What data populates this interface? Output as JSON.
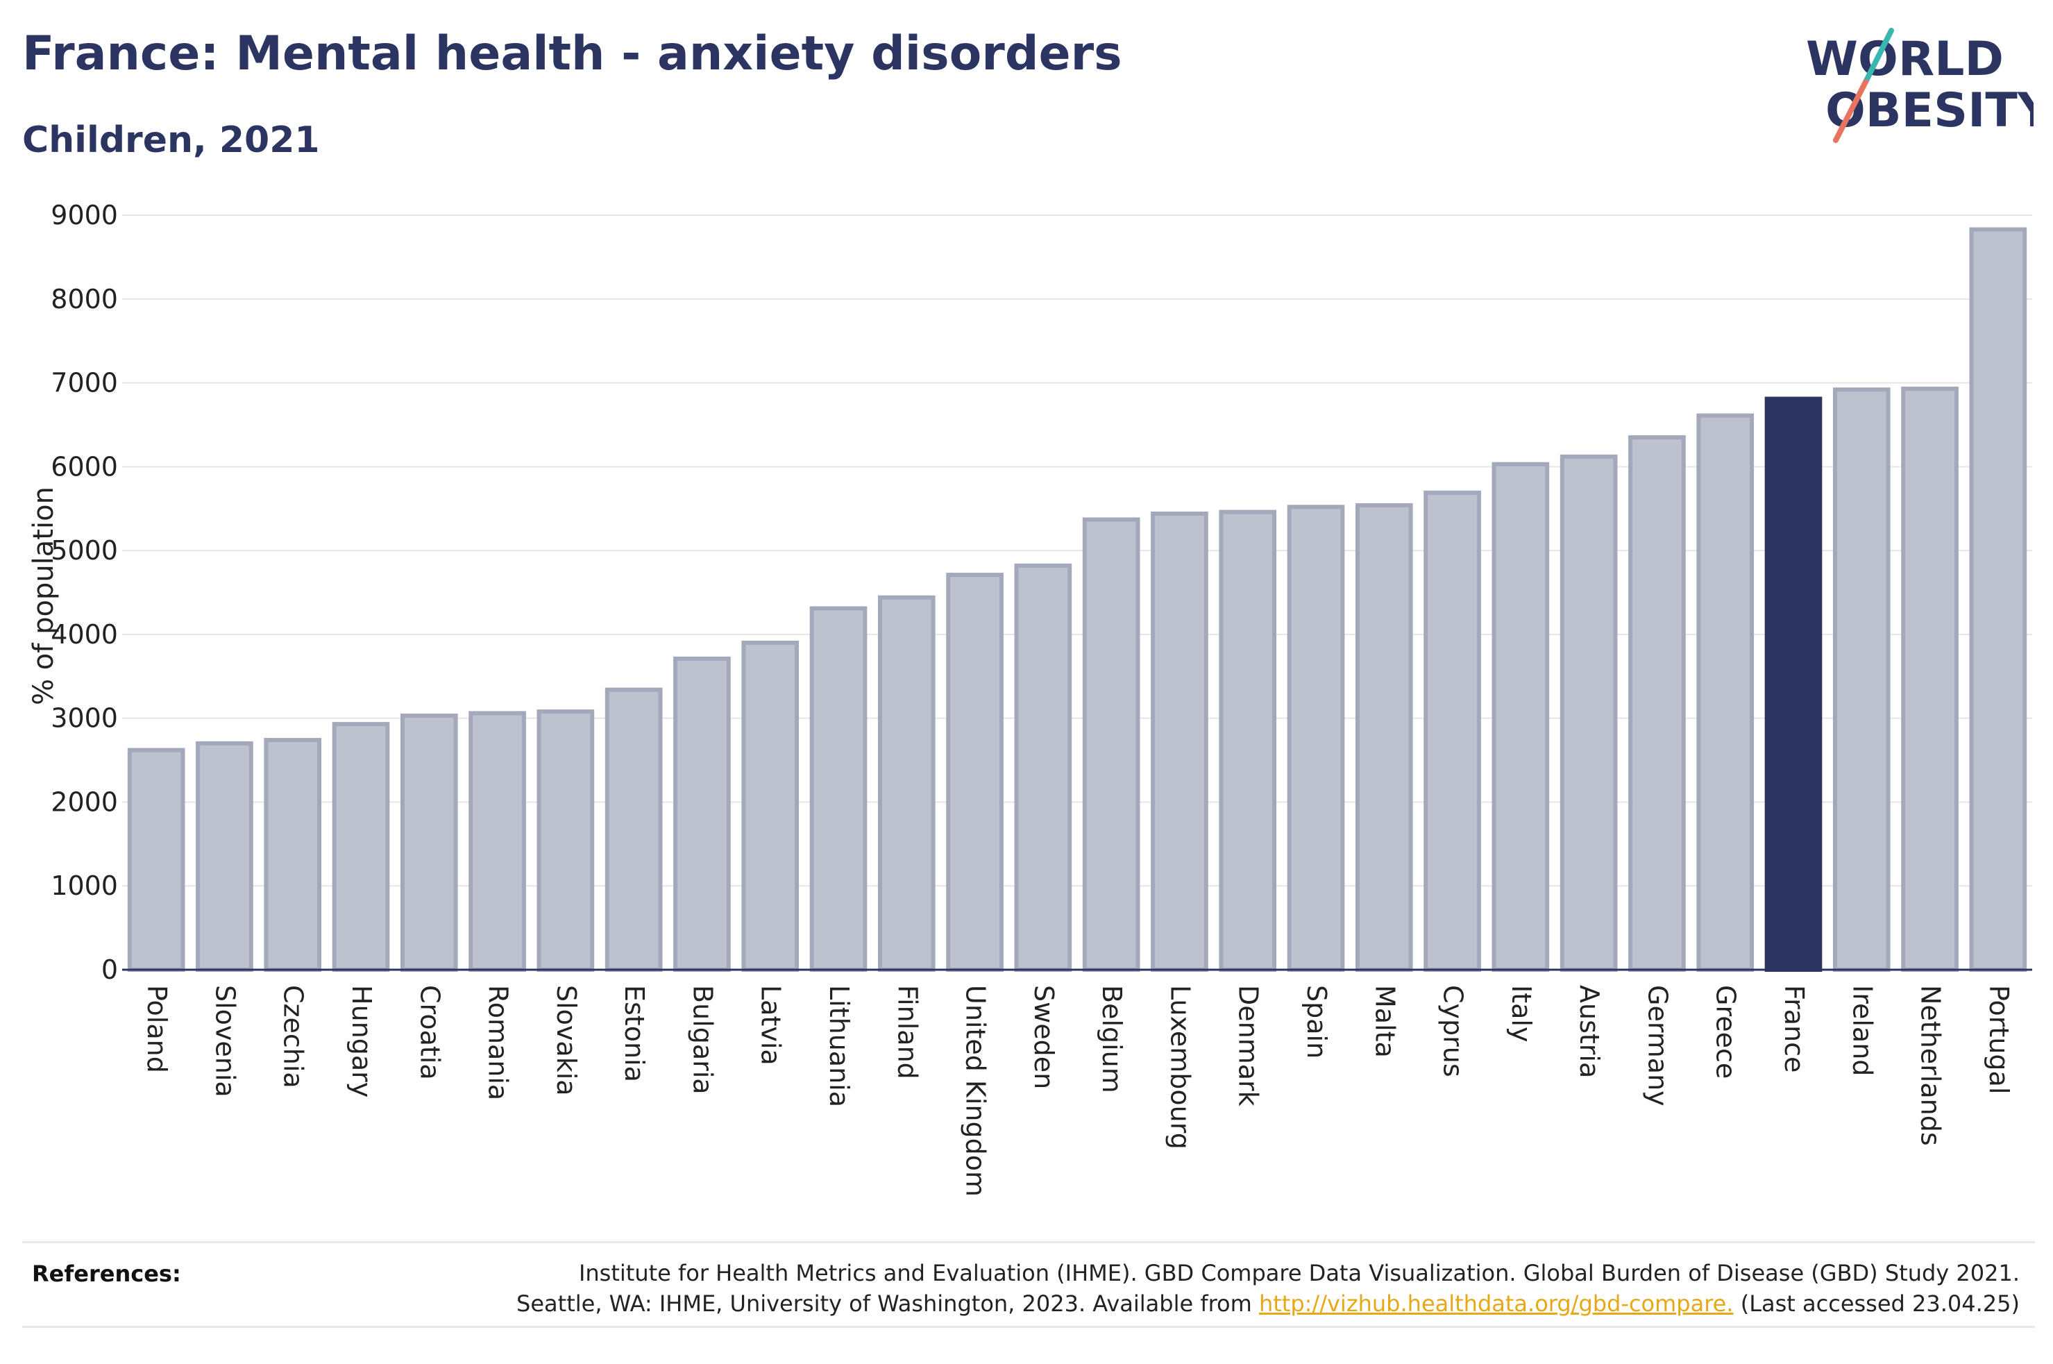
{
  "title": "France: Mental health - anxiety disorders",
  "subtitle": "Children, 2021",
  "logo": {
    "line1": "WORLD",
    "line2": "OBESITY",
    "colors": {
      "text": "#2c3562",
      "slash_teal": "#3ab6b1",
      "slash_coral": "#e8735f"
    }
  },
  "references": {
    "label": "References:",
    "text_line1": "Institute for Health Metrics and Evaluation (IHME). GBD Compare Data Visualization. Global Burden of Disease (GBD) Study 2021.",
    "text_line2_before": "Seattle, WA: IHME, University of Washington, 2023. Available from",
    "link_text": "http://vizhub.healthdata.org/gbd-compare.",
    "text_line2_after": "(Last accessed 23.04.25)"
  },
  "chart_data": {
    "type": "bar",
    "ylabel": "% of population",
    "xlabel": "",
    "ylim": [
      0,
      9000
    ],
    "yticks": [
      0,
      1000,
      2000,
      3000,
      4000,
      5000,
      6000,
      7000,
      8000,
      9000
    ],
    "grid": true,
    "highlight": "France",
    "colors": {
      "bar": "#bec1ce",
      "bar_edge": "#a3a8bb",
      "highlight": "#2c3562",
      "grid": "#e6e6e6",
      "axis": "#2c3562"
    },
    "categories": [
      "Poland",
      "Slovenia",
      "Czechia",
      "Hungary",
      "Croatia",
      "Romania",
      "Slovakia",
      "Estonia",
      "Bulgaria",
      "Latvia",
      "Lithuania",
      "Finland",
      "United Kingdom",
      "Sweden",
      "Belgium",
      "Luxembourg",
      "Denmark",
      "Spain",
      "Malta",
      "Cyprus",
      "Italy",
      "Austria",
      "Germany",
      "Greece",
      "France",
      "Ireland",
      "Netherlands",
      "Portugal"
    ],
    "values": [
      2620,
      2700,
      2740,
      2930,
      3030,
      3060,
      3080,
      3340,
      3710,
      3900,
      4310,
      4440,
      4710,
      4820,
      5370,
      5440,
      5460,
      5520,
      5540,
      5690,
      6030,
      6120,
      6350,
      6610,
      6810,
      6920,
      6930,
      8830
    ]
  }
}
